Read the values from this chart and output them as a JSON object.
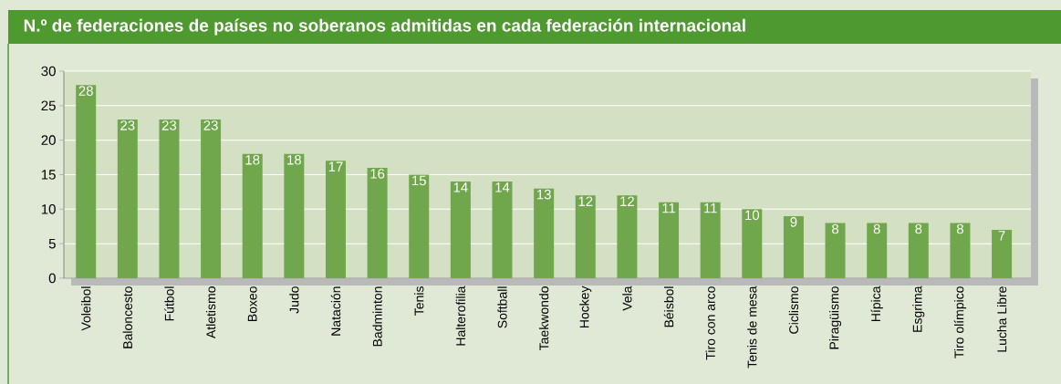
{
  "chart_data": {
    "type": "bar",
    "title": "N.º de federaciones de países no soberanos admitidas en cada federación internacional",
    "categories": [
      "Voleibol",
      "Baloncesto",
      "Fútbol",
      "Atletismo",
      "Boxeo",
      "Judo",
      "Natación",
      "Badminton",
      "Tenis",
      "Halterofilia",
      "Softball",
      "Taekwondo",
      "Hockey",
      "Vela",
      "Béisbol",
      "Tiro con arco",
      "Tenis de mesa",
      "Ciclismo",
      "Piragüismo",
      "Hípica",
      "Esgrima",
      "Tiro olímpico",
      "Lucha Libre"
    ],
    "values": [
      28,
      23,
      23,
      23,
      18,
      18,
      17,
      16,
      15,
      14,
      14,
      13,
      12,
      12,
      11,
      11,
      10,
      9,
      8,
      8,
      8,
      8,
      7
    ],
    "color": "#70a64c",
    "ylim": [
      0,
      30
    ],
    "yticks": [
      0,
      5,
      10,
      15,
      20,
      25,
      30
    ],
    "grid": "y",
    "data_labels": true
  }
}
